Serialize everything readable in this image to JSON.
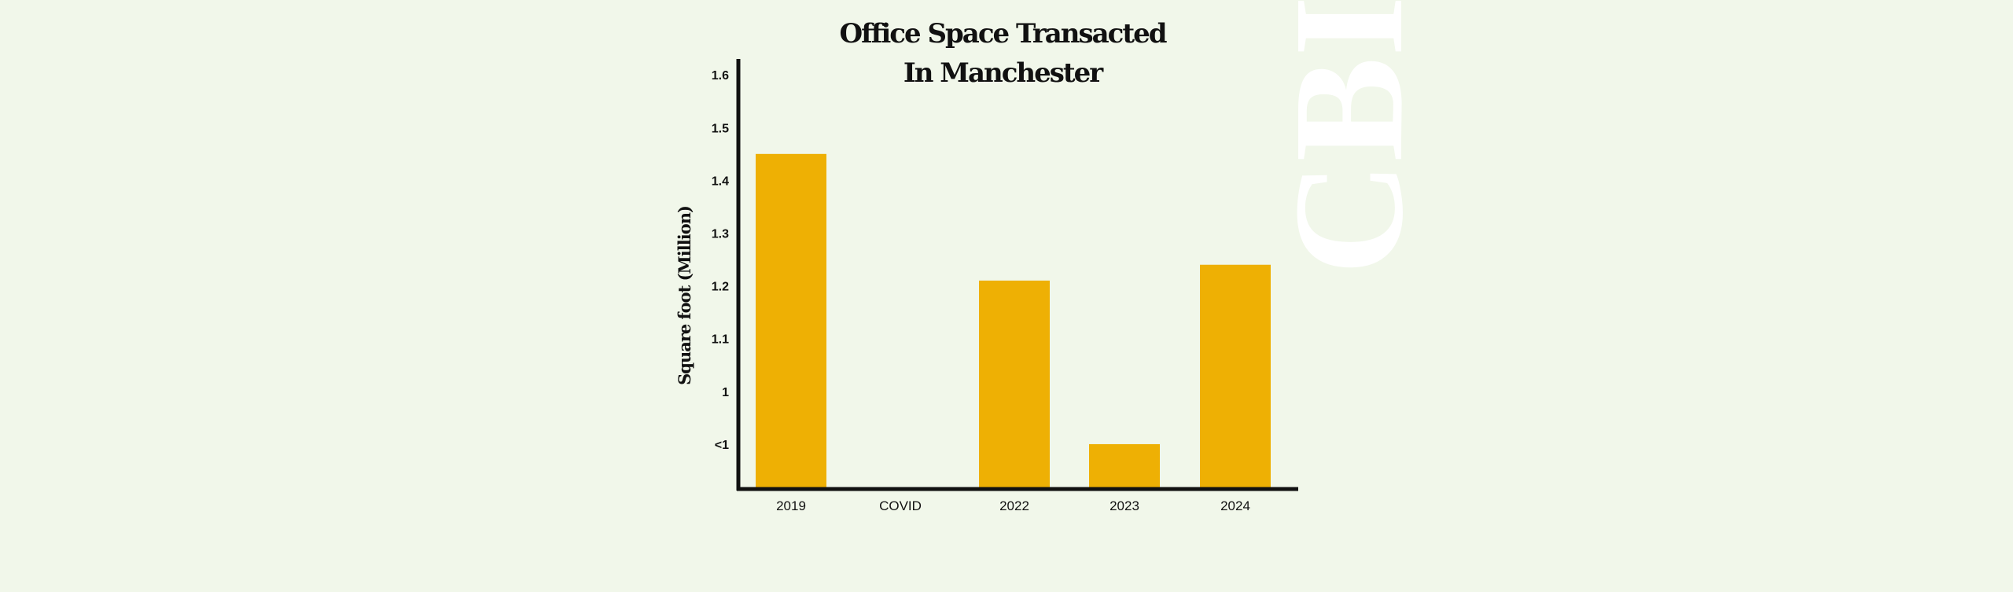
{
  "chart_data": {
    "type": "bar",
    "title_lines": [
      "Office Space Transacted",
      "In Manchester"
    ],
    "xlabel": "",
    "ylabel": "Square foot (Million)",
    "categories": [
      "2019",
      "COVID",
      "2022",
      "2023",
      "2024"
    ],
    "values": [
      1.45,
      null,
      1.21,
      0.9,
      1.24
    ],
    "y_ticks": [
      {
        "label": "1.6",
        "value": 1.6
      },
      {
        "label": "1.5",
        "value": 1.5
      },
      {
        "label": "1.4",
        "value": 1.4
      },
      {
        "label": "1.3",
        "value": 1.3
      },
      {
        "label": "1.2",
        "value": 1.2
      },
      {
        "label": "1.1",
        "value": 1.1
      },
      {
        "label": "1",
        "value": 1.0
      },
      {
        "label": "<1",
        "value": 0.9
      }
    ],
    "ylim": [
      0.815,
      1.63
    ],
    "grid": false,
    "bar_color": "#eeb004",
    "background_color": "#f1f7ea",
    "watermark": "CBI"
  }
}
